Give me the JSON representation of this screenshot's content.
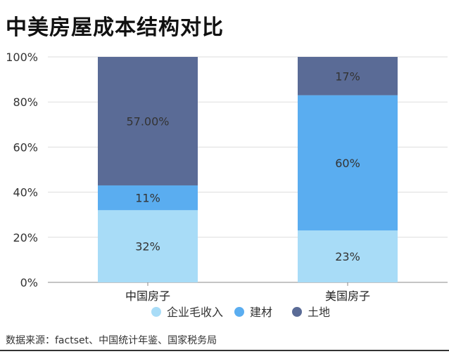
{
  "title": "中美房屋成本结构对比",
  "source": "数据来源：factset、中国统计年鉴、国家税务局",
  "chart_data": {
    "type": "bar",
    "stacked": true,
    "categories": [
      "中国房子",
      "美国房子"
    ],
    "series": [
      {
        "name": "企业毛收入",
        "values": [
          32,
          23
        ],
        "labels": [
          "32%",
          "23%"
        ],
        "color": "#a8dcf7"
      },
      {
        "name": "建材",
        "values": [
          11,
          60
        ],
        "labels": [
          "11%",
          "60%"
        ],
        "color": "#5aadf0"
      },
      {
        "name": "土地",
        "values": [
          57,
          17
        ],
        "labels": [
          "57.00%",
          "17%"
        ],
        "color": "#5a6b96"
      }
    ],
    "ylim": [
      0,
      100
    ],
    "yticks": [
      "0%",
      "20%",
      "40%",
      "60%",
      "80%",
      "100%"
    ],
    "grid": true,
    "legend_position": "bottom"
  }
}
